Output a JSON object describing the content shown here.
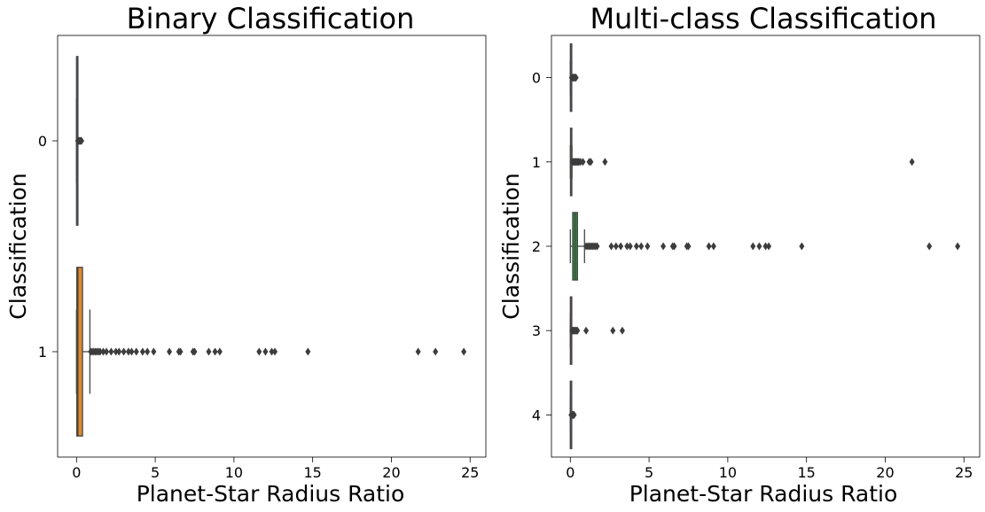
{
  "chart_data": [
    {
      "type": "box",
      "title": "Binary Classification",
      "xlabel": "Planet-Star Radius Ratio",
      "ylabel": "Classification",
      "xlim": [
        -1.2,
        26
      ],
      "xticks": [
        0,
        5,
        10,
        15,
        20,
        25
      ],
      "categories": [
        "0",
        "1"
      ],
      "series": [
        {
          "category": "0",
          "color": "#3a7bbf",
          "q1": 0.005,
          "median": 0.01,
          "q3": 0.02,
          "whisker_low": 0.0,
          "whisker_high": 0.05,
          "outliers": [
            0.08,
            0.12,
            0.16,
            0.2,
            0.24,
            0.28,
            0.32
          ]
        },
        {
          "category": "1",
          "color": "#e08a2e",
          "q1": 0.02,
          "median": 0.09,
          "q3": 0.38,
          "whisker_low": 0.0,
          "whisker_high": 0.85,
          "outliers": [
            0.9,
            1.0,
            1.1,
            1.2,
            1.3,
            1.4,
            1.5,
            1.7,
            1.9,
            2.2,
            2.5,
            2.7,
            3.0,
            3.3,
            3.5,
            3.8,
            4.2,
            4.5,
            4.9,
            5.9,
            6.5,
            6.6,
            7.4,
            7.5,
            8.4,
            8.8,
            9.1,
            11.6,
            12.0,
            12.4,
            12.6,
            14.7,
            21.7,
            22.8,
            24.6
          ]
        }
      ]
    },
    {
      "type": "box",
      "title": "Multi-class Classification",
      "xlabel": "Planet-Star Radius Ratio",
      "ylabel": "Classification",
      "xlim": [
        -1.2,
        26
      ],
      "xticks": [
        0,
        5,
        10,
        15,
        20,
        25
      ],
      "categories": [
        "0",
        "1",
        "2",
        "3",
        "4"
      ],
      "series": [
        {
          "category": "0",
          "color": "#3a7bbf",
          "q1": 0.005,
          "median": 0.01,
          "q3": 0.02,
          "whisker_low": 0.0,
          "whisker_high": 0.05,
          "outliers": [
            0.08,
            0.12,
            0.16,
            0.2,
            0.24,
            0.28,
            0.32,
            0.36
          ]
        },
        {
          "category": "1",
          "color": "#e08a2e",
          "q1": 0.01,
          "median": 0.02,
          "q3": 0.04,
          "whisker_low": 0.0,
          "whisker_high": 0.1,
          "outliers": [
            0.15,
            0.2,
            0.25,
            0.3,
            0.35,
            0.4,
            0.45,
            0.5,
            0.55,
            0.65,
            0.8,
            1.2,
            1.3,
            2.2,
            21.7
          ]
        },
        {
          "category": "2",
          "color": "#2e8b3e",
          "q1": 0.15,
          "median": 0.3,
          "q3": 0.45,
          "whisker_low": 0.0,
          "whisker_high": 0.9,
          "outliers": [
            1.0,
            1.1,
            1.2,
            1.3,
            1.4,
            1.5,
            1.6,
            1.7,
            2.6,
            2.9,
            3.2,
            3.6,
            3.8,
            4.2,
            4.5,
            4.9,
            5.9,
            6.5,
            6.6,
            7.4,
            7.5,
            8.8,
            9.1,
            11.6,
            12.0,
            12.4,
            12.6,
            14.7,
            22.8,
            24.6
          ]
        },
        {
          "category": "3",
          "color": "#c0392b",
          "q1": 0.005,
          "median": 0.01,
          "q3": 0.03,
          "whisker_low": 0.0,
          "whisker_high": 0.08,
          "outliers": [
            0.1,
            0.15,
            0.2,
            0.25,
            0.3,
            0.35,
            0.4,
            0.45,
            1.0,
            2.7,
            3.3
          ]
        },
        {
          "category": "4",
          "color": "#8e5bbf",
          "q1": 0.002,
          "median": 0.005,
          "q3": 0.01,
          "whisker_low": 0.0,
          "whisker_high": 0.03,
          "outliers": [
            0.05,
            0.08,
            0.11,
            0.14,
            0.17,
            0.2,
            0.24
          ]
        }
      ]
    }
  ]
}
